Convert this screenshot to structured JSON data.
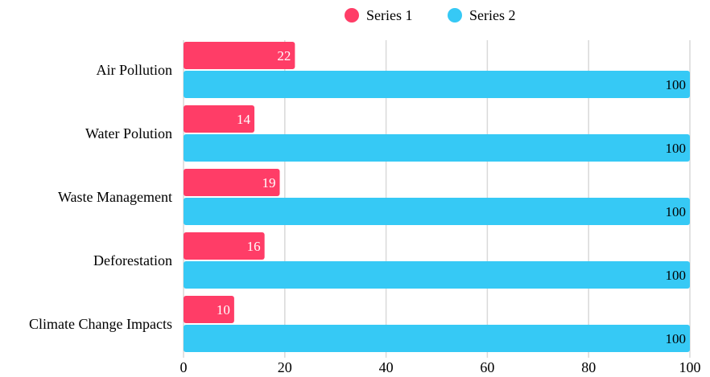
{
  "chart_data": {
    "type": "bar",
    "orientation": "horizontal",
    "categories": [
      "Air Pollution",
      "Water Polution",
      "Waste Management",
      "Deforestation",
      "Climate Change Impacts"
    ],
    "series": [
      {
        "name": "Series 1",
        "color": "#ff3d67",
        "values": [
          22,
          14,
          19,
          16,
          10
        ]
      },
      {
        "name": "Series 2",
        "color": "#36c9f5",
        "values": [
          100,
          100,
          100,
          100,
          100
        ]
      }
    ],
    "xlim": [
      0,
      100
    ],
    "xticks": [
      "0",
      "20",
      "40",
      "60",
      "80",
      "100"
    ],
    "grid": true,
    "legend_position": "top-center",
    "data_labels": true
  }
}
